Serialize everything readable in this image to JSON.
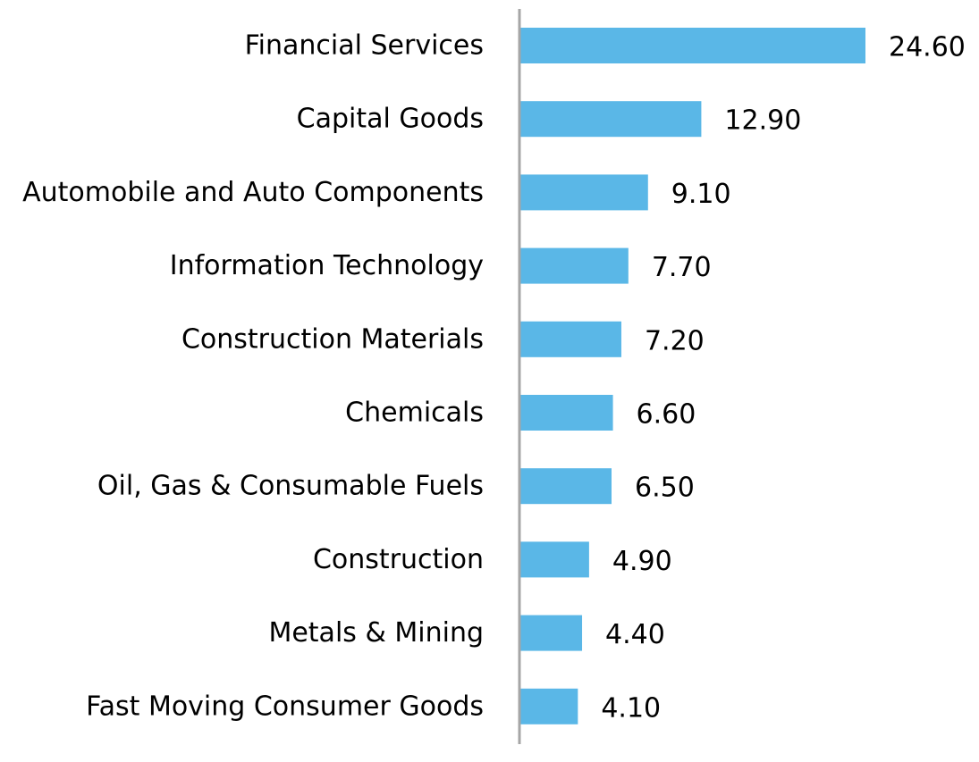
{
  "chart_data": {
    "type": "bar",
    "orientation": "horizontal",
    "title": "",
    "xlabel": "",
    "ylabel": "",
    "categories": [
      "Financial Services",
      "Capital Goods",
      "Automobile and Auto Components",
      "Information Technology",
      "Construction Materials",
      "Chemicals",
      "Oil, Gas & Consumable Fuels",
      "Construction",
      "Metals & Mining",
      "Fast Moving Consumer Goods"
    ],
    "values": [
      24.6,
      12.9,
      9.1,
      7.7,
      7.2,
      6.6,
      6.5,
      4.9,
      4.4,
      4.1
    ],
    "data_labels": [
      "24.60",
      "12.90",
      "9.10",
      "7.70",
      "7.20",
      "6.60",
      "6.50",
      "4.90",
      "4.40",
      "4.10"
    ],
    "xlim": [
      0,
      24.6
    ],
    "grid": false,
    "legend": "none",
    "colors": {
      "bar": "#5AB7E7",
      "axis": "#A6A6A6",
      "text": "#000000"
    }
  }
}
